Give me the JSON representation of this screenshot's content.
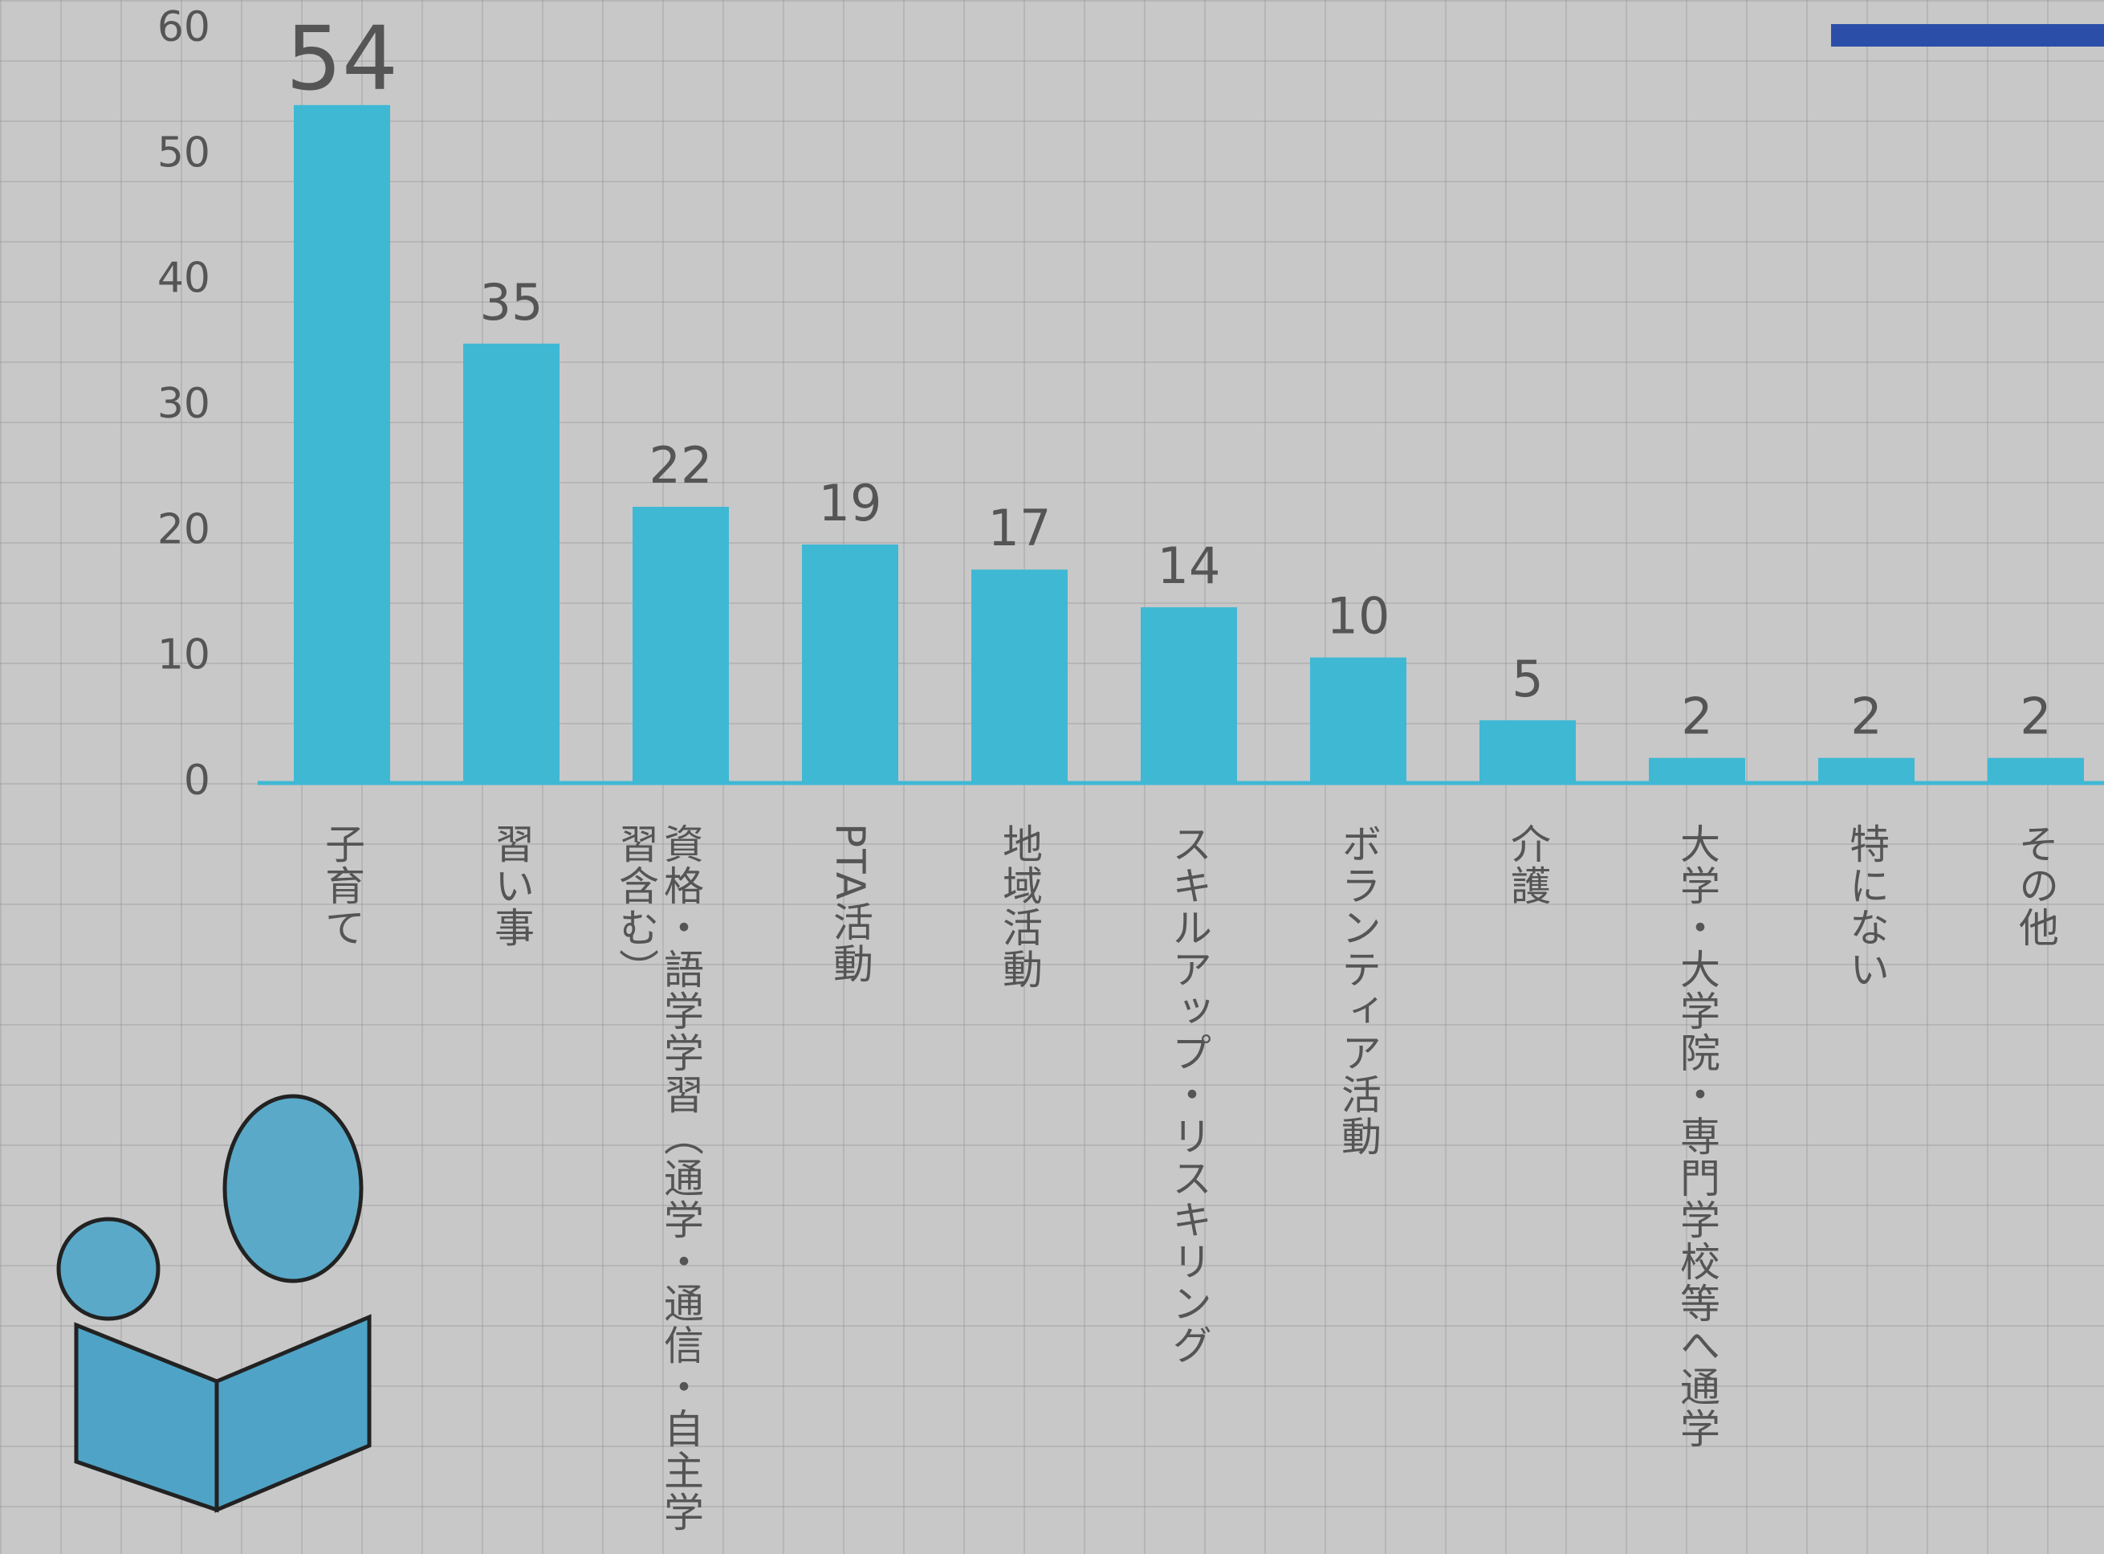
{
  "chart_data": {
    "type": "bar",
    "categories": [
      "子育て",
      "習い事",
      "資格・語学学習（通学・通信・自主学習含む）",
      "PTA活動",
      "地域活動",
      "スキルアップ・リスキリング",
      "ボランティア活動",
      "介護",
      "大学・大学院・専門学校等へ通学",
      "特にない",
      "その他"
    ],
    "values": [
      54,
      35,
      22,
      19,
      17,
      14,
      10,
      5,
      2,
      2,
      2
    ],
    "color": "#3fb8d4",
    "ylim": [
      0,
      60
    ],
    "yticks": [
      0,
      10,
      20,
      30,
      40,
      50,
      60
    ]
  }
}
